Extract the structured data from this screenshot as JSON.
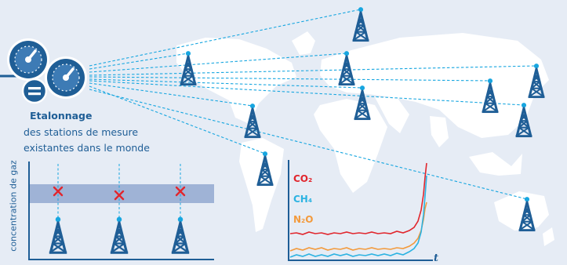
{
  "title": "Etalonnage",
  "subtitle_line1": "des stations de mesure",
  "subtitle_line2": "existantes dans le monde",
  "y_axis_label": "concentration de gaz",
  "gases": [
    {
      "label": "CO₂",
      "color": "#e1262d"
    },
    {
      "label": "CH₄",
      "color": "#2cb3e2"
    },
    {
      "label": "N₂O",
      "color": "#f39a3c"
    }
  ],
  "time_axis_label": "t",
  "colors": {
    "primary": "#1f5e96",
    "accent": "#17a6e0",
    "mark": "#e1262d",
    "map": "#ffffff",
    "band": "#9fb3d6"
  },
  "icons": [
    "gauge-icon",
    "equals-icon",
    "antenna-tower-icon",
    "cross-mark-icon",
    "world-map"
  ]
}
